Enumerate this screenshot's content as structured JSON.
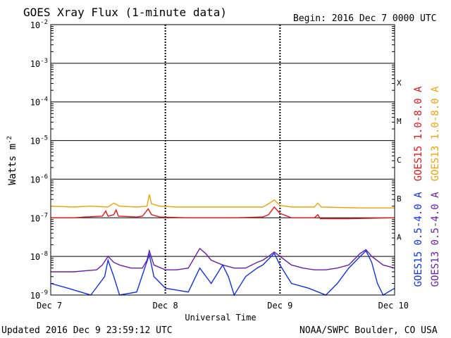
{
  "title": "GOES Xray Flux (1-minute data)",
  "begin": "Begin:  2016 Dec 7 0000 UTC",
  "updated": "Updated 2016 Dec  9 23:59:12 UTC",
  "credit": "NOAA/SWPC Boulder, CO USA",
  "chart_data": {
    "type": "line",
    "xlabel": "Universal Time",
    "ylabel": "Watts m",
    "ylabel_superscript": "-2",
    "yscale": "log",
    "ylim": [
      1e-09,
      0.01
    ],
    "y_ticks": [
      {
        "base": "10",
        "exp": "-2",
        "value": 0.01
      },
      {
        "base": "10",
        "exp": "-3",
        "value": 0.001
      },
      {
        "base": "10",
        "exp": "-4",
        "value": 0.0001
      },
      {
        "base": "10",
        "exp": "-5",
        "value": 1e-05
      },
      {
        "base": "10",
        "exp": "-6",
        "value": 1e-06
      },
      {
        "base": "10",
        "exp": "-7",
        "value": 1e-07
      },
      {
        "base": "10",
        "exp": "-8",
        "value": 1e-08
      },
      {
        "base": "10",
        "exp": "-9",
        "value": 1e-09
      }
    ],
    "xlim": [
      0,
      3
    ],
    "x_unit": "days since Dec 7 0000 UTC",
    "x_ticks": [
      {
        "label": "Dec 7",
        "value": 0
      },
      {
        "label": "Dec 8",
        "value": 1
      },
      {
        "label": "Dec 9",
        "value": 2
      },
      {
        "label": "Dec 10",
        "value": 3
      }
    ],
    "flare_classes": [
      {
        "label": "X",
        "lower": 0.0001
      },
      {
        "label": "M",
        "lower": 1e-05
      },
      {
        "label": "C",
        "lower": 1e-06
      },
      {
        "label": "B",
        "lower": 1e-07
      },
      {
        "label": "A",
        "lower": 1e-08
      }
    ],
    "series": [
      {
        "name": "GOES15 1.0-8.0 A",
        "color": "#e8141b",
        "points": [
          [
            0,
            1e-07
          ],
          [
            0.1,
            1e-07
          ],
          [
            0.2,
            1e-07
          ],
          [
            0.3,
            1.05e-07
          ],
          [
            0.45,
            1.1e-07
          ],
          [
            0.48,
            1.5e-07
          ],
          [
            0.5,
            1.1e-07
          ],
          [
            0.55,
            1.2e-07
          ],
          [
            0.57,
            1.6e-07
          ],
          [
            0.59,
            1.1e-07
          ],
          [
            0.75,
            1.05e-07
          ],
          [
            0.8,
            1.1e-07
          ],
          [
            0.85,
            1.7e-07
          ],
          [
            0.88,
            1.2e-07
          ],
          [
            0.95,
            1.05e-07
          ],
          [
            1.2,
            1e-07
          ],
          [
            1.6,
            1e-07
          ],
          [
            1.85,
            1.05e-07
          ],
          [
            1.9,
            1.2e-07
          ],
          [
            1.95,
            1.9e-07
          ],
          [
            2.0,
            1.3e-07
          ],
          [
            2.1,
            1e-07
          ],
          [
            2.3,
            1e-07
          ],
          [
            2.33,
            1.2e-07
          ],
          [
            2.35,
            9.5e-08
          ],
          [
            2.6,
            9.5e-08
          ],
          [
            3,
            1e-07
          ]
        ]
      },
      {
        "name": "GOES13 1.0-8.0 A",
        "color": "#f0a30a",
        "points": [
          [
            0,
            2e-07
          ],
          [
            0.2,
            1.9e-07
          ],
          [
            0.35,
            2e-07
          ],
          [
            0.5,
            1.9e-07
          ],
          [
            0.55,
            2.4e-07
          ],
          [
            0.6,
            2e-07
          ],
          [
            0.75,
            1.9e-07
          ],
          [
            0.84,
            2e-07
          ],
          [
            0.86,
            4e-07
          ],
          [
            0.88,
            2.3e-07
          ],
          [
            0.95,
            2e-07
          ],
          [
            1.1,
            1.9e-07
          ],
          [
            1.5,
            1.9e-07
          ],
          [
            1.85,
            1.9e-07
          ],
          [
            1.9,
            2.3e-07
          ],
          [
            1.95,
            2.9e-07
          ],
          [
            2.0,
            2.1e-07
          ],
          [
            2.1,
            1.9e-07
          ],
          [
            2.3,
            1.9e-07
          ],
          [
            2.33,
            2.4e-07
          ],
          [
            2.36,
            1.9e-07
          ],
          [
            2.7,
            1.8e-07
          ],
          [
            3,
            1.8e-07
          ]
        ]
      },
      {
        "name": "GOES15 0.5-4.0 A",
        "color": "#1030f0",
        "points": [
          [
            0,
            2e-09
          ],
          [
            0.15,
            1.5e-09
          ],
          [
            0.35,
            1e-09
          ],
          [
            0.47,
            3e-09
          ],
          [
            0.5,
            8e-09
          ],
          [
            0.55,
            3e-09
          ],
          [
            0.6,
            1e-09
          ],
          [
            0.75,
            1.2e-09
          ],
          [
            0.82,
            5e-09
          ],
          [
            0.86,
            1.1e-08
          ],
          [
            0.9,
            3e-09
          ],
          [
            1.0,
            1.5e-09
          ],
          [
            1.2,
            1.2e-09
          ],
          [
            1.3,
            5e-09
          ],
          [
            1.4,
            2e-09
          ],
          [
            1.5,
            6e-09
          ],
          [
            1.55,
            3e-09
          ],
          [
            1.6,
            1e-09
          ],
          [
            1.7,
            3e-09
          ],
          [
            1.8,
            5e-09
          ],
          [
            1.85,
            6e-09
          ],
          [
            1.95,
            1.2e-08
          ],
          [
            2.0,
            6e-09
          ],
          [
            2.1,
            2e-09
          ],
          [
            2.25,
            1.5e-09
          ],
          [
            2.4,
            1e-09
          ],
          [
            2.5,
            2e-09
          ],
          [
            2.6,
            5e-09
          ],
          [
            2.7,
            1e-08
          ],
          [
            2.75,
            1.4e-08
          ],
          [
            2.8,
            7e-09
          ],
          [
            2.85,
            2e-09
          ],
          [
            2.9,
            1e-09
          ],
          [
            3.0,
            1.5e-09
          ]
        ]
      },
      {
        "name": "GOES13 0.5-4.0 A",
        "color": "#6a1ea8",
        "points": [
          [
            0,
            4e-09
          ],
          [
            0.2,
            4e-09
          ],
          [
            0.4,
            4.5e-09
          ],
          [
            0.45,
            6e-09
          ],
          [
            0.5,
            1e-08
          ],
          [
            0.55,
            7e-09
          ],
          [
            0.6,
            6e-09
          ],
          [
            0.7,
            5e-09
          ],
          [
            0.8,
            5e-09
          ],
          [
            0.84,
            8e-09
          ],
          [
            0.86,
            1.4e-08
          ],
          [
            0.9,
            6e-09
          ],
          [
            1.0,
            4.5e-09
          ],
          [
            1.1,
            4.5e-09
          ],
          [
            1.2,
            5e-09
          ],
          [
            1.3,
            1.6e-08
          ],
          [
            1.35,
            1.2e-08
          ],
          [
            1.4,
            8e-09
          ],
          [
            1.5,
            6e-09
          ],
          [
            1.6,
            5e-09
          ],
          [
            1.7,
            5e-09
          ],
          [
            1.8,
            7e-09
          ],
          [
            1.85,
            8e-09
          ],
          [
            1.9,
            1e-08
          ],
          [
            1.95,
            1.3e-08
          ],
          [
            2.0,
            1e-08
          ],
          [
            2.1,
            6e-09
          ],
          [
            2.2,
            5e-09
          ],
          [
            2.3,
            4.5e-09
          ],
          [
            2.4,
            4.5e-09
          ],
          [
            2.5,
            5e-09
          ],
          [
            2.6,
            6e-09
          ],
          [
            2.7,
            1.2e-08
          ],
          [
            2.75,
            1.5e-08
          ],
          [
            2.8,
            1e-08
          ],
          [
            2.9,
            6e-09
          ],
          [
            3.0,
            5e-09
          ]
        ]
      }
    ]
  }
}
